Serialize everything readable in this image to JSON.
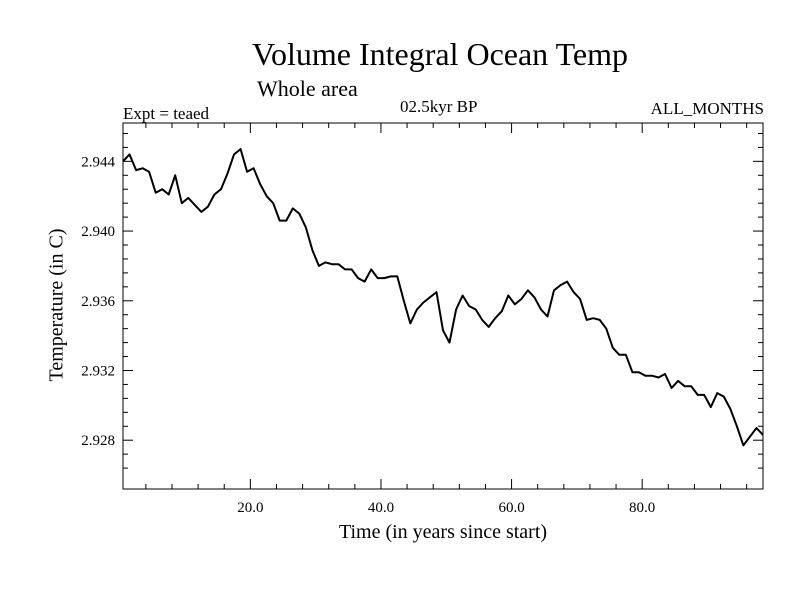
{
  "chart_data": {
    "type": "line",
    "title": "Volume Integral Ocean Temp",
    "subtitle": "Whole area",
    "expt_label": "Expt = teaed",
    "period_label": "02.5kyr BP",
    "months_label": "ALL_MONTHS",
    "xlabel": "Time (in years since start)",
    "ylabel": "Temperature (in C)",
    "xlim": [
      0.5,
      98.5
    ],
    "ylim": [
      2.9252,
      2.9462
    ],
    "x_ticks": [
      20,
      40,
      60,
      80
    ],
    "x_tick_labels": [
      "20.0",
      "40.0",
      "60.0",
      "80.0"
    ],
    "y_ticks": [
      2.928,
      2.932,
      2.936,
      2.94,
      2.944
    ],
    "y_tick_labels": [
      "2.928",
      "2.932",
      "2.936",
      "2.940",
      "2.944"
    ],
    "series": [
      {
        "name": "Volume Integral Ocean Temp",
        "x": [
          0.5,
          1.5,
          2.5,
          3.5,
          4.5,
          5.5,
          6.5,
          7.5,
          8.5,
          9.5,
          10.5,
          11.5,
          12.5,
          13.5,
          14.5,
          15.5,
          16.5,
          17.5,
          18.5,
          19.5,
          20.5,
          21.5,
          22.5,
          23.5,
          24.5,
          25.5,
          26.5,
          27.5,
          28.5,
          29.5,
          30.5,
          31.5,
          32.5,
          33.5,
          34.5,
          35.5,
          36.5,
          37.5,
          38.5,
          39.5,
          40.5,
          41.5,
          42.5,
          43.5,
          44.5,
          45.5,
          46.5,
          47.5,
          48.5,
          49.5,
          50.5,
          51.5,
          52.5,
          53.5,
          54.5,
          55.5,
          56.5,
          57.5,
          58.5,
          59.5,
          60.5,
          61.5,
          62.5,
          63.5,
          64.5,
          65.5,
          66.5,
          67.5,
          68.5,
          69.5,
          70.5,
          71.5,
          72.5,
          73.5,
          74.5,
          75.5,
          76.5,
          77.5,
          78.5,
          79.5,
          80.5,
          81.5,
          82.5,
          83.5,
          84.5,
          85.5,
          86.5,
          87.5,
          88.5,
          89.5,
          90.5,
          91.5,
          92.5,
          93.5,
          94.5,
          95.5,
          96.5,
          97.5,
          98.5
        ],
        "values": [
          2.944,
          2.9444,
          2.9435,
          2.9436,
          2.9434,
          2.9422,
          2.9424,
          2.9421,
          2.9432,
          2.9416,
          2.9419,
          2.9415,
          2.9411,
          2.9414,
          2.9421,
          2.9424,
          2.9433,
          2.9444,
          2.9447,
          2.9434,
          2.9436,
          2.9427,
          2.942,
          2.9416,
          2.9406,
          2.9406,
          2.9413,
          2.941,
          2.9402,
          2.9389,
          2.938,
          2.9382,
          2.9381,
          2.9381,
          2.9378,
          2.9378,
          2.9373,
          2.9371,
          2.9378,
          2.9373,
          2.9373,
          2.9374,
          2.9374,
          2.936,
          2.9347,
          2.9355,
          2.9359,
          2.9362,
          2.9365,
          2.9343,
          2.9336,
          2.9355,
          2.9363,
          2.9357,
          2.9355,
          2.9349,
          2.9345,
          2.935,
          2.9354,
          2.9363,
          2.9358,
          2.9361,
          2.9366,
          2.9362,
          2.9355,
          2.9351,
          2.9366,
          2.9369,
          2.9371,
          2.9365,
          2.9361,
          2.9349,
          2.935,
          2.9349,
          2.9344,
          2.9333,
          2.9329,
          2.9329,
          2.9319,
          2.9319,
          2.9317,
          2.9317,
          2.9316,
          2.9318,
          2.931,
          2.9314,
          2.9311,
          2.9311,
          2.9306,
          2.9306,
          2.9299,
          2.9307,
          2.9305,
          2.9298,
          2.9288,
          2.9277,
          2.9282,
          2.9287,
          2.9283
        ]
      }
    ]
  }
}
